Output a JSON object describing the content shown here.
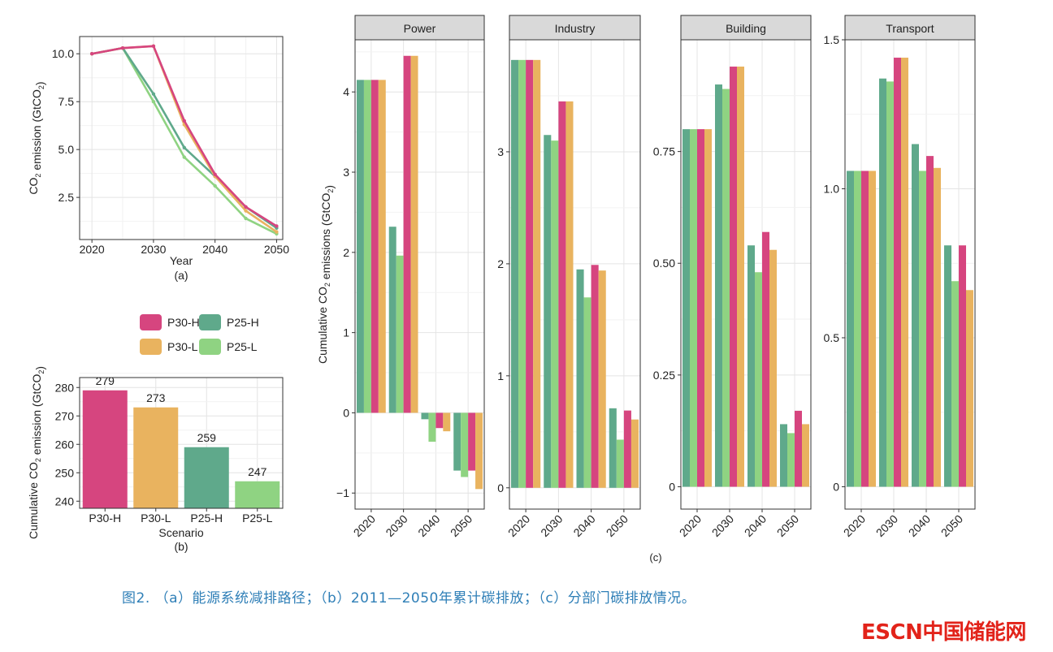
{
  "colors": {
    "P30-H": "#d6457f",
    "P30-L": "#e9b35f",
    "P25-H": "#5fa98b",
    "P25-L": "#8fd382"
  },
  "caption": "图2. （a）能源系统减排路径；（b）2011—2050年累计碳排放；（c）分部门碳排放情况。",
  "logo": "ESCN中国储能网",
  "chart_data": [
    {
      "panel": "a",
      "label": "(a)",
      "type": "line",
      "xlabel": "Year",
      "ylabel": "CO2 emission (GtCO2)",
      "xlim": [
        2018,
        2051
      ],
      "ylim": [
        0.3,
        10.9
      ],
      "xticks": [
        2020,
        2030,
        2040,
        2050
      ],
      "yticks": [
        2.5,
        5.0,
        7.5,
        10.0
      ],
      "ytick_labels": [
        "2.5",
        "5.0",
        "7.5",
        "10.0"
      ],
      "grid": true,
      "x": [
        2020,
        2025,
        2030,
        2035,
        2040,
        2045,
        2050
      ],
      "series": [
        {
          "name": "P30-H",
          "values": [
            10.0,
            10.3,
            10.4,
            6.5,
            3.7,
            2.0,
            1.0
          ]
        },
        {
          "name": "P30-L",
          "values": [
            10.0,
            10.3,
            10.4,
            6.3,
            3.6,
            1.8,
            0.7
          ]
        },
        {
          "name": "P25-H",
          "values": [
            10.0,
            10.3,
            7.9,
            5.1,
            3.6,
            2.0,
            0.9
          ]
        },
        {
          "name": "P25-L",
          "values": [
            10.0,
            10.3,
            7.5,
            4.6,
            3.1,
            1.4,
            0.6
          ]
        }
      ]
    },
    {
      "panel": "legend",
      "type": "legend",
      "entries": [
        "P30-H",
        "P25-H",
        "P30-L",
        "P25-L"
      ]
    },
    {
      "panel": "b",
      "label": "(b)",
      "type": "bar",
      "xlabel": "Scenario",
      "ylabel": "Cumulative CO2 emission (GtCO2)",
      "categories": [
        "P30-H",
        "P30-L",
        "P25-H",
        "P25-L"
      ],
      "values": [
        279,
        273,
        259,
        247
      ],
      "data_labels": [
        "279",
        "273",
        "259",
        "247"
      ],
      "ylim": [
        237.5,
        283.5
      ],
      "yticks": [
        240,
        250,
        260,
        270,
        280
      ],
      "grid": true
    },
    {
      "panel": "c",
      "label": "(c)",
      "type": "bar",
      "ylabel": "Cumulative CO2 emissions (GtCO2)",
      "categories": [
        "2020",
        "2030",
        "2040",
        "2050"
      ],
      "series_order": [
        "P25-H",
        "P25-L",
        "P30-H",
        "P30-L"
      ],
      "facets": [
        {
          "title": "Power",
          "ylim": [
            -1.2,
            4.65
          ],
          "yticks": [
            -1,
            0,
            1,
            2,
            3,
            4
          ],
          "ytick_labels": [
            "−1",
            "0",
            "1",
            "2",
            "3",
            "4"
          ],
          "series": [
            {
              "name": "P25-H",
              "values": [
                4.15,
                2.32,
                -0.08,
                -0.72
              ]
            },
            {
              "name": "P25-L",
              "values": [
                4.15,
                1.96,
                -0.36,
                -0.8
              ]
            },
            {
              "name": "P30-H",
              "values": [
                4.15,
                4.45,
                -0.19,
                -0.72
              ]
            },
            {
              "name": "P30-L",
              "values": [
                4.15,
                4.45,
                -0.23,
                -0.95
              ]
            }
          ]
        },
        {
          "title": "Industry",
          "ylim": [
            -0.19,
            4.0
          ],
          "yticks": [
            0,
            1,
            2,
            3
          ],
          "ytick_labels": [
            "0",
            "1",
            "2",
            "3"
          ],
          "series": [
            {
              "name": "P25-H",
              "values": [
                3.82,
                3.15,
                1.95,
                0.71
              ]
            },
            {
              "name": "P25-L",
              "values": [
                3.82,
                3.1,
                1.7,
                0.43
              ]
            },
            {
              "name": "P30-H",
              "values": [
                3.82,
                3.45,
                1.99,
                0.69
              ]
            },
            {
              "name": "P30-L",
              "values": [
                3.82,
                3.45,
                1.94,
                0.61
              ]
            }
          ]
        },
        {
          "title": "Building",
          "ylim": [
            -0.05,
            1.0
          ],
          "yticks": [
            0,
            0.25,
            0.5,
            0.75
          ],
          "ytick_labels": [
            "0",
            "0.25",
            "0.50",
            "0.75"
          ],
          "series": [
            {
              "name": "P25-H",
              "values": [
                0.8,
                0.9,
                0.54,
                0.14
              ]
            },
            {
              "name": "P25-L",
              "values": [
                0.8,
                0.89,
                0.48,
                0.12
              ]
            },
            {
              "name": "P30-H",
              "values": [
                0.8,
                0.94,
                0.57,
                0.17
              ]
            },
            {
              "name": "P30-L",
              "values": [
                0.8,
                0.94,
                0.53,
                0.14
              ]
            }
          ]
        },
        {
          "title": "Transport",
          "ylim": [
            -0.075,
            1.5
          ],
          "yticks": [
            0,
            0.5,
            1.0,
            1.5
          ],
          "ytick_labels": [
            "0",
            "0.5",
            "1.0",
            "1.5"
          ],
          "series": [
            {
              "name": "P25-H",
              "values": [
                1.06,
                1.37,
                1.15,
                0.81
              ]
            },
            {
              "name": "P25-L",
              "values": [
                1.06,
                1.36,
                1.06,
                0.69
              ]
            },
            {
              "name": "P30-H",
              "values": [
                1.06,
                1.44,
                1.11,
                0.81
              ]
            },
            {
              "name": "P30-L",
              "values": [
                1.06,
                1.44,
                1.07,
                0.66
              ]
            }
          ]
        }
      ]
    }
  ]
}
